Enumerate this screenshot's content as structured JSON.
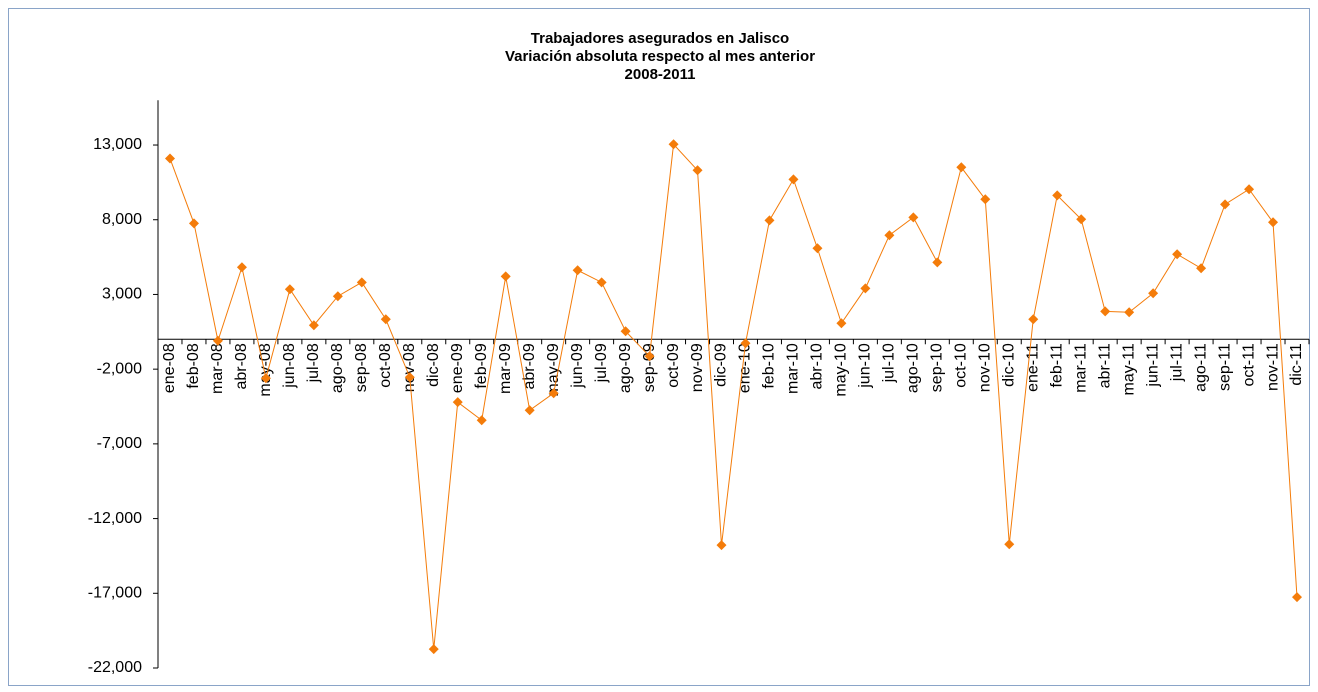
{
  "chart_data": {
    "type": "line",
    "title": [
      "Trabajadores asegurados en Jalisco",
      "Variación absoluta respecto al mes anterior",
      "2008-2011"
    ],
    "categories": [
      "ene-08",
      "feb-08",
      "mar-08",
      "abr-08",
      "may-08",
      "jun-08",
      "jul-08",
      "ago-08",
      "sep-08",
      "oct-08",
      "nov-08",
      "dic-08",
      "ene-09",
      "feb-09",
      "mar-09",
      "abr-09",
      "may-09",
      "jun-09",
      "jul-09",
      "ago-09",
      "sep-09",
      "oct-09",
      "nov-09",
      "dic-09",
      "ene-10",
      "feb-10",
      "mar-10",
      "abr-10",
      "may-10",
      "jun-10",
      "jul-10",
      "ago-10",
      "sep-10",
      "oct-10",
      "nov-10",
      "dic-10",
      "ene-11",
      "feb-11",
      "mar-11",
      "abr-11",
      "may-11",
      "jun-11",
      "jul-11",
      "ago-11",
      "sep-11",
      "oct-11",
      "nov-11",
      "dic-11"
    ],
    "values": [
      12100,
      7760,
      -100,
      4820,
      -2610,
      3350,
      940,
      2880,
      3810,
      1340,
      -2540,
      -20740,
      -4210,
      -5420,
      4210,
      -4750,
      -3610,
      4620,
      3810,
      540,
      -1140,
      13050,
      11310,
      -13780,
      -270,
      7960,
      10700,
      6090,
      1070,
      3410,
      6960,
      8160,
      5150,
      11510,
      9370,
      -13720,
      1340,
      9630,
      8030,
      1870,
      1810,
      3080,
      5690,
      4750,
      9030,
      10040,
      7830,
      -17260
    ],
    "color": "#f47c0a",
    "ylim": [
      -22000,
      16000
    ],
    "yticks": [
      {
        "value": -22000,
        "label": "-22,000"
      },
      {
        "value": -17000,
        "label": "-17,000"
      },
      {
        "value": -12000,
        "label": "-12,000"
      },
      {
        "value": -7000,
        "label": "-7,000"
      },
      {
        "value": -2000,
        "label": "-2,000"
      },
      {
        "value": 3000,
        "label": "3,000"
      },
      {
        "value": 8000,
        "label": "8,000"
      },
      {
        "value": 13000,
        "label": "13,000"
      }
    ],
    "grid": false
  }
}
